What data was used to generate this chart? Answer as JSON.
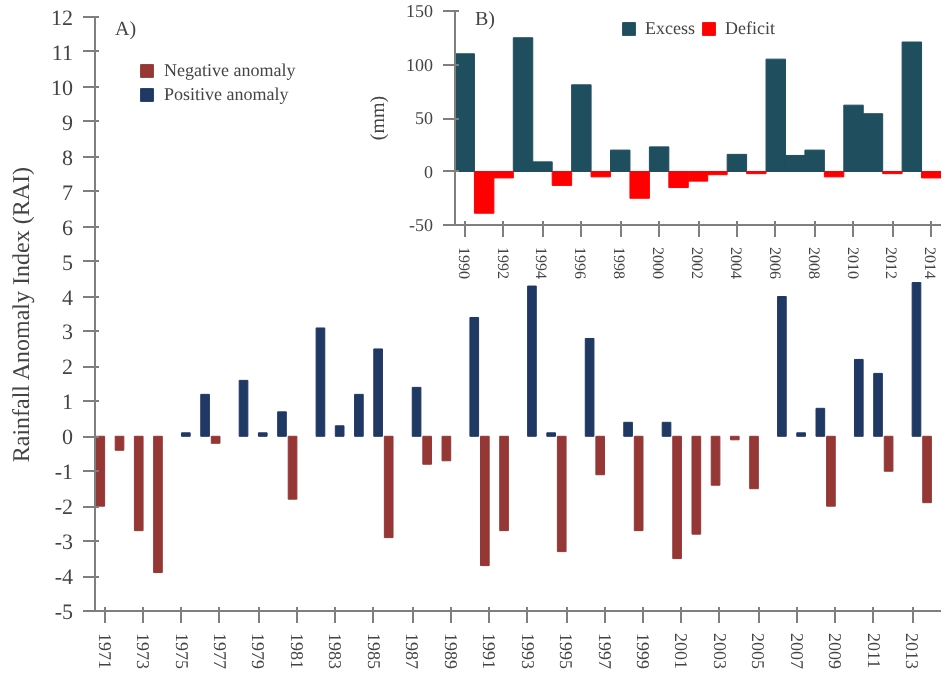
{
  "chart_data": [
    {
      "type": "bar",
      "categories": [
        "1971",
        null,
        "1973",
        null,
        "1975",
        null,
        "1977",
        null,
        "1979",
        null,
        "1981",
        null,
        "1983",
        null,
        "1985",
        null,
        "1987",
        null,
        "1989",
        null,
        "1991",
        null,
        "1993",
        null,
        "1995",
        null,
        "1997",
        null,
        "1999",
        null,
        "2001",
        null,
        "2003",
        null,
        "2005",
        null,
        "2007",
        null,
        "2009",
        null,
        "2011",
        null,
        "2013",
        null
      ],
      "series": [
        {
          "name": "Negative anomaly",
          "color": "#953735",
          "values": [
            -2.0,
            -0.4,
            -2.7,
            -3.9,
            null,
            null,
            -0.2,
            null,
            null,
            null,
            -1.8,
            null,
            null,
            null,
            null,
            -2.9,
            null,
            -0.8,
            -0.7,
            null,
            -3.7,
            -2.7,
            null,
            null,
            -3.3,
            null,
            -1.1,
            null,
            -2.7,
            null,
            -3.5,
            -2.8,
            -1.4,
            -0.1,
            -1.5,
            null,
            null,
            null,
            -2.0,
            null,
            null,
            -1.0,
            null,
            -1.9
          ]
        },
        {
          "name": "Positive anomaly",
          "color": "#1f3864",
          "values": [
            null,
            null,
            null,
            null,
            0.1,
            1.2,
            null,
            1.6,
            0.1,
            0.7,
            null,
            3.1,
            0.3,
            1.2,
            2.5,
            null,
            1.4,
            null,
            null,
            3.4,
            null,
            null,
            4.3,
            0.1,
            null,
            2.8,
            null,
            0.4,
            null,
            0.4,
            null,
            null,
            null,
            null,
            null,
            4.0,
            0.1,
            0.8,
            null,
            2.2,
            1.8,
            null,
            4.4,
            null
          ]
        }
      ],
      "ylabel": "Rainfall Anomaly Index (RAI)",
      "ylim": [
        -5,
        12
      ],
      "yticks": [
        -5,
        -4,
        -3,
        -2,
        -1,
        0,
        1,
        2,
        3,
        4,
        5,
        6,
        7,
        8,
        9,
        10,
        11,
        12
      ],
      "legend": "top left",
      "annotations": [
        "A)"
      ]
    },
    {
      "type": "bar",
      "stacked": true,
      "categories": [
        "1990",
        null,
        "1992",
        null,
        "1994",
        null,
        "1996",
        null,
        "1998",
        null,
        "2000",
        null,
        "2002",
        null,
        "2004",
        null,
        "2006",
        null,
        "2008",
        null,
        "2010",
        null,
        "2012",
        null,
        "2014"
      ],
      "series": [
        {
          "name": "Excess",
          "color": "#1f4e5f",
          "values": [
            110,
            null,
            null,
            125,
            9,
            null,
            81,
            null,
            20,
            null,
            23,
            null,
            null,
            null,
            16,
            null,
            105,
            15,
            20,
            null,
            62,
            54,
            null,
            121,
            null
          ]
        },
        {
          "name": "Deficit",
          "color": "#ff0000",
          "values": [
            null,
            -39,
            -6,
            null,
            null,
            -13,
            null,
            -5,
            null,
            -25,
            null,
            -15,
            -9,
            -3,
            null,
            -2,
            null,
            null,
            null,
            -5,
            null,
            null,
            -2,
            null,
            -6
          ]
        }
      ],
      "ylabel": "(mm)",
      "ylim": [
        -50,
        150
      ],
      "yticks": [
        -50,
        0,
        50,
        100,
        150
      ],
      "legend": "top",
      "annotations": [
        "B)"
      ]
    }
  ]
}
